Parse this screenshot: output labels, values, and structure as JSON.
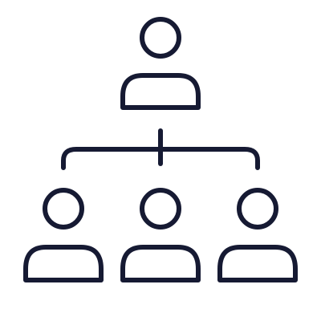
{
  "icon": {
    "name": "org-chart-icon",
    "stroke_color": "#161a33",
    "background_color": "#ffffff",
    "top_person_icon": "person-icon",
    "bottom_person_icons": [
      "person-icon",
      "person-icon",
      "person-icon"
    ],
    "connector_icon": "branch-connector-icon"
  }
}
